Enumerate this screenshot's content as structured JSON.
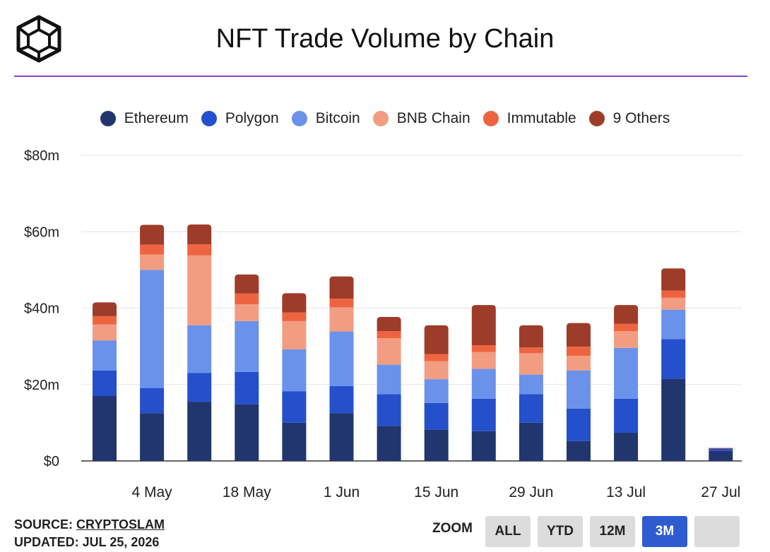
{
  "header": {
    "title": "NFT Trade Volume by Chain"
  },
  "chart_data": {
    "type": "bar",
    "stacked": true,
    "title": "NFT Trade Volume by Chain",
    "xlabel": "",
    "ylabel": "",
    "ylim": [
      0,
      80
    ],
    "y_ticks": [
      "$0",
      "$20m",
      "$40m",
      "$60m",
      "$80m"
    ],
    "x_tick_labels": [
      "4 May",
      "18 May",
      "1 Jun",
      "15 Jun",
      "29 Jun",
      "13 Jul",
      "27 Jul"
    ],
    "grid": true,
    "legend_position": "top",
    "series": [
      {
        "name": "Ethereum",
        "color": "#21366f",
        "values": [
          17,
          12.5,
          15.5,
          14.8,
          10,
          12.5,
          9.2,
          8.2,
          7.8,
          10,
          5.2,
          7.4,
          21.5,
          2.6
        ]
      },
      {
        "name": "Polygon",
        "color": "#2450cc",
        "values": [
          6.7,
          6.6,
          7.5,
          8.5,
          8.2,
          7.1,
          8.3,
          7,
          8.5,
          7.5,
          8.5,
          8.9,
          10.4,
          0.6
        ]
      },
      {
        "name": "Bitcoin",
        "color": "#6a92ea",
        "values": [
          7.8,
          30.9,
          12.5,
          13.3,
          11,
          14.3,
          7.7,
          6.2,
          7.8,
          5.1,
          10,
          13.3,
          7.7,
          0
        ]
      },
      {
        "name": "BNB Chain",
        "color": "#f29d82",
        "values": [
          4.2,
          4,
          18.3,
          4.4,
          7.4,
          6.3,
          6.9,
          4.7,
          4.4,
          5.6,
          3.8,
          4.4,
          3.1,
          0
        ]
      },
      {
        "name": "Immutable",
        "color": "#ee6441",
        "values": [
          2.2,
          2.6,
          2.9,
          2.8,
          2.3,
          2.3,
          1.9,
          1.9,
          1.8,
          1.5,
          2.4,
          1.9,
          1.9,
          0
        ]
      },
      {
        "name": "9 Others",
        "color": "#9e3c2a",
        "values": [
          3.6,
          5.2,
          5.2,
          5,
          5,
          5.8,
          3.7,
          7.5,
          10.5,
          5.8,
          6.2,
          4.9,
          5.8,
          0.2
        ]
      }
    ]
  },
  "footer": {
    "source_label": "SOURCE:",
    "source_name": "CRYPTOSLAM",
    "updated": "UPDATED: JUL 25, 2026"
  },
  "zoom": {
    "label": "ZOOM",
    "buttons": [
      {
        "label": "ALL",
        "active": false
      },
      {
        "label": "YTD",
        "active": false
      },
      {
        "label": "12M",
        "active": false
      },
      {
        "label": "3M",
        "active": true
      },
      {
        "label": "",
        "active": false
      }
    ],
    "active_color": "#2f5bd0"
  }
}
